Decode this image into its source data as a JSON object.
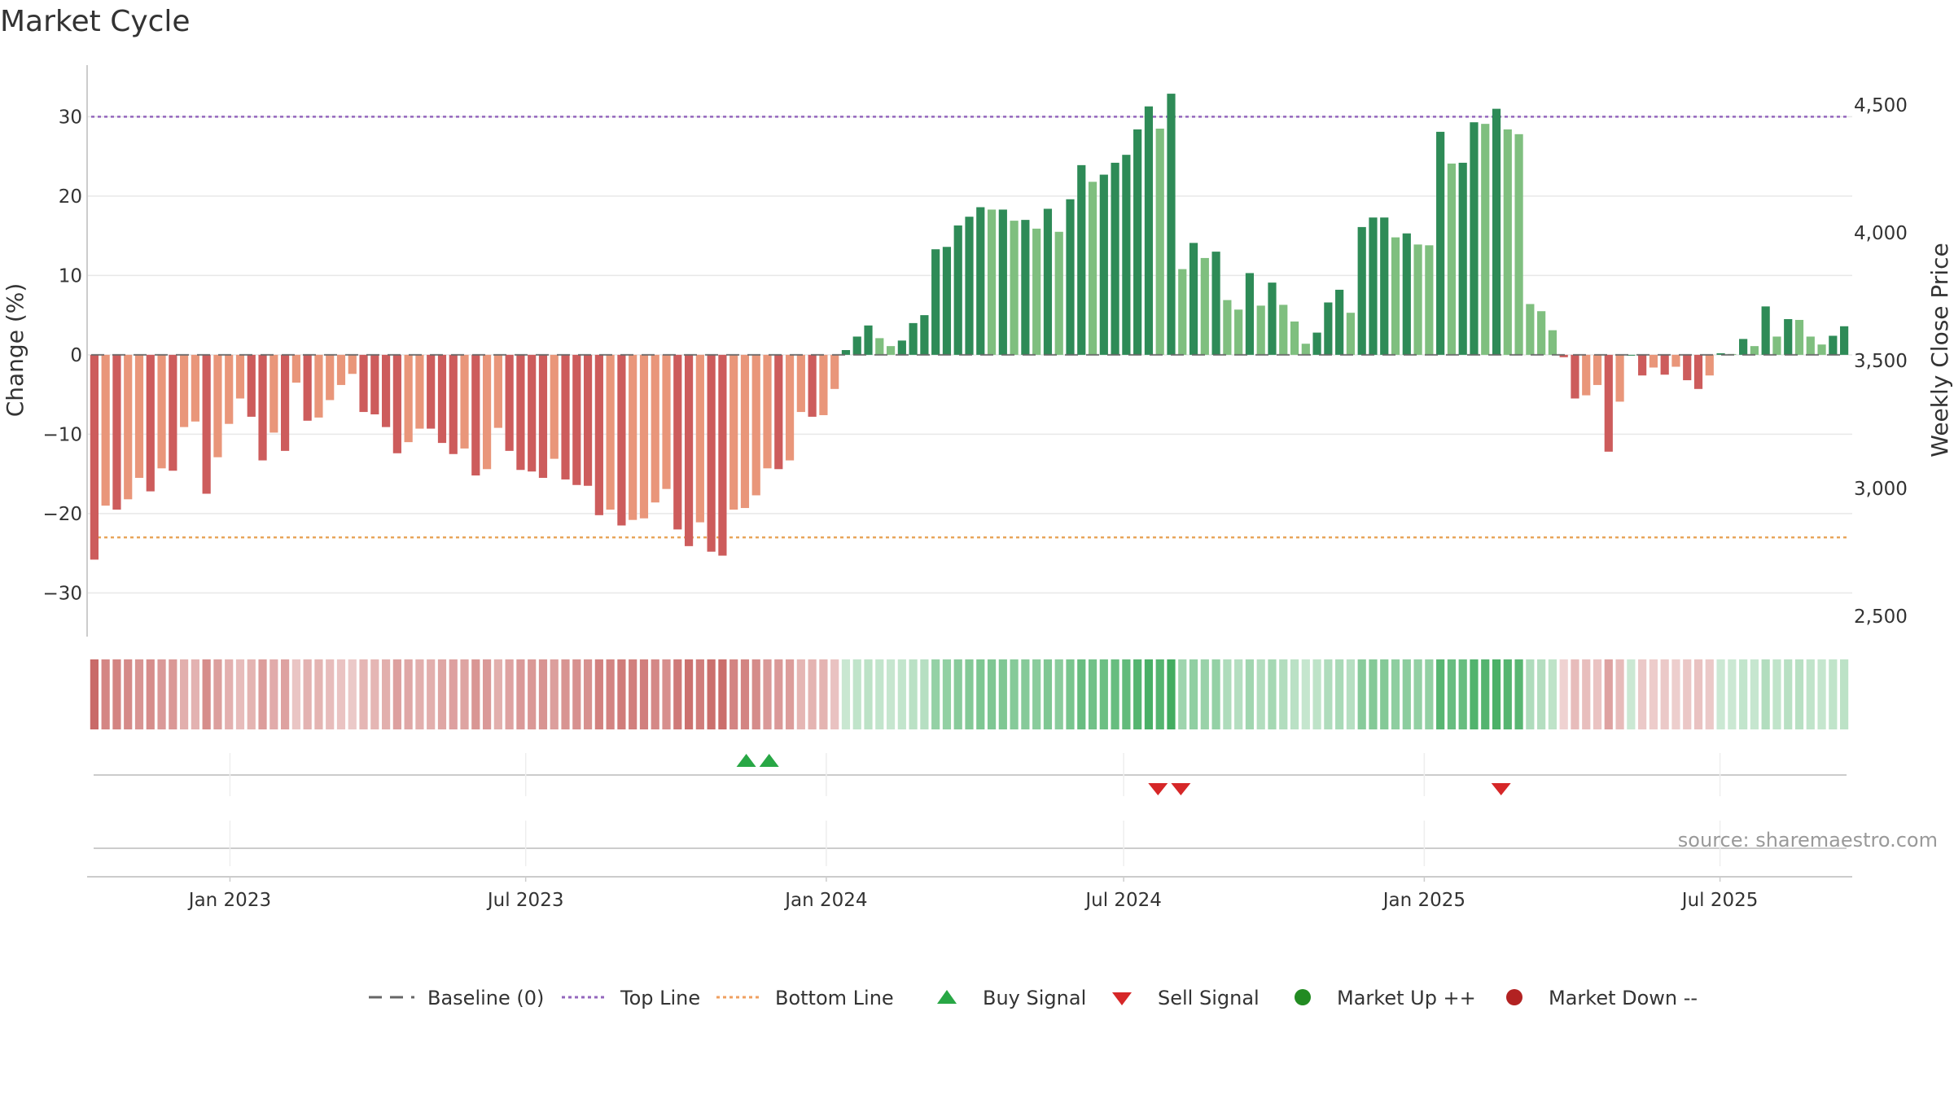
{
  "chart_data": {
    "type": "bar",
    "title": "Market Cycle",
    "ylabel": "Change (%)",
    "y2label": "Weekly Close Price",
    "ylim": [
      -35.5,
      36.5
    ],
    "y2lim": [
      2450,
      4560
    ],
    "yticks": [
      30,
      20,
      10,
      0,
      -10,
      -20,
      -30
    ],
    "ytick_labels": [
      "30",
      "20",
      "10",
      "0",
      "−10",
      "−20",
      "−30"
    ],
    "y2ticks": [
      4500,
      4000,
      3500,
      3000,
      2500
    ],
    "y2tick_labels": [
      "4,500",
      "4,000",
      "3,500",
      "3,000",
      "2,500"
    ],
    "top_line": 30,
    "bottom_line": -23,
    "baseline": 0,
    "start_date": "2022-10-10",
    "end_date": "2025-09-15",
    "x_ticks": [
      {
        "date": "2023-01-01",
        "label": "Jan 2023"
      },
      {
        "date": "2023-07-01",
        "label": "Jul 2023"
      },
      {
        "date": "2024-01-01",
        "label": "Jan 2024"
      },
      {
        "date": "2024-07-01",
        "label": "Jul 2024"
      },
      {
        "date": "2025-01-01",
        "label": "Jan 2025"
      },
      {
        "date": "2025-07-01",
        "label": "Jul 2025"
      }
    ],
    "values": [
      -25.8,
      -19,
      -19.5,
      -18.2,
      -15.5,
      -17.2,
      -14.3,
      -14.6,
      -9.1,
      -8.4,
      -17.5,
      -12.9,
      -8.7,
      -5.5,
      -7.8,
      -13.3,
      -9.8,
      -12.1,
      -3.5,
      -8.3,
      -7.9,
      -5.7,
      -3.8,
      -2.4,
      -7.2,
      -7.5,
      -9.1,
      -12.4,
      -11,
      -9.3,
      -9.3,
      -11.1,
      -12.5,
      -11.8,
      -15.2,
      -14.4,
      -9.2,
      -12.1,
      -14.5,
      -14.7,
      -15.5,
      -13.1,
      -15.7,
      -16.4,
      -16.5,
      -20.2,
      -19.5,
      -21.5,
      -20.8,
      -20.6,
      -18.6,
      -16.9,
      -22,
      -24.1,
      -21.1,
      -24.8,
      -25.3,
      -19.5,
      -19.3,
      -17.7,
      -14.3,
      -14.4,
      -13.3,
      -7.2,
      -7.8,
      -7.6,
      -4.3,
      0.6,
      2.3,
      3.7,
      2.1,
      1.1,
      1.8,
      4,
      5,
      13.3,
      13.6,
      16.3,
      17.4,
      18.6,
      18.3,
      18.3,
      16.9,
      17,
      15.9,
      18.4,
      15.5,
      19.6,
      23.9,
      21.8,
      22.7,
      24.2,
      25.2,
      28.4,
      31.3,
      28.5,
      32.9,
      10.8,
      14.1,
      12.2,
      13,
      6.9,
      5.7,
      10.3,
      6.2,
      9.1,
      6.3,
      4.2,
      1.4,
      2.8,
      6.6,
      8.2,
      5.3,
      16.1,
      17.3,
      17.3,
      14.8,
      15.3,
      13.9,
      13.8,
      28.1,
      24.1,
      24.2,
      29.3,
      29.1,
      31,
      28.4,
      27.8,
      6.4,
      5.5,
      3.1,
      -0.3,
      -5.5,
      -5.1,
      -3.8,
      -12.2,
      -5.9,
      0,
      -2.6,
      -1.6,
      -2.5,
      -1.5,
      -3.2,
      -4.3,
      -2.6,
      0.2,
      0.1,
      2,
      1.1,
      6.1,
      2.3,
      4.5,
      4.4,
      2.3,
      1.3,
      2.4,
      3.6
    ],
    "signals": [
      {
        "type": "buy",
        "date": "2023-11-13"
      },
      {
        "type": "buy",
        "date": "2023-11-27"
      },
      {
        "type": "sell",
        "date": "2024-07-22"
      },
      {
        "type": "sell",
        "date": "2024-08-05"
      },
      {
        "type": "sell",
        "date": "2025-02-17"
      }
    ],
    "legend": [
      {
        "key": "baseline",
        "label": "Baseline (0)",
        "color": "#666666"
      },
      {
        "key": "top",
        "label": "Top Line",
        "color": "#9467bd"
      },
      {
        "key": "bottom",
        "label": "Bottom Line",
        "color": "#f0a060"
      },
      {
        "key": "buy",
        "label": "Buy Signal",
        "color": "#28a745"
      },
      {
        "key": "sell",
        "label": "Sell Signal",
        "color": "#d62728"
      },
      {
        "key": "up",
        "label": "Market Up ++",
        "color": "#228b22"
      },
      {
        "key": "down",
        "label": "Market Down --",
        "color": "#b22222"
      }
    ],
    "colors": {
      "neg_strong": "#cd5c5c",
      "neg_light": "#e9967a",
      "pos_strong": "#2e8b57",
      "pos_light": "#7fbf7f"
    },
    "grid": true,
    "legend_position": "bottom"
  },
  "source_text": "source: sharemaestro.com"
}
